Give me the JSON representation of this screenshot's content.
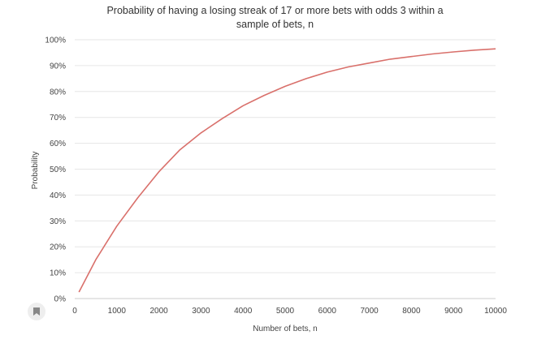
{
  "chart_data": {
    "type": "line",
    "title_lines": [
      "Probability of having a losing streak of 17 or more bets with odds 3 within a",
      "sample of bets, n"
    ],
    "xlabel": "Number of bets, n",
    "ylabel": "Probability",
    "xlim": [
      0,
      10000
    ],
    "ylim": [
      0,
      100
    ],
    "x_ticks": [
      0,
      1000,
      2000,
      3000,
      4000,
      5000,
      6000,
      7000,
      8000,
      9000,
      10000
    ],
    "x_tick_labels": [
      "0",
      "1000",
      "2000",
      "3000",
      "4000",
      "5000",
      "6000",
      "7000",
      "8000",
      "9000",
      "10000"
    ],
    "y_ticks": [
      0,
      10,
      20,
      30,
      40,
      50,
      60,
      70,
      80,
      90,
      100
    ],
    "y_tick_labels": [
      "0%",
      "10%",
      "20%",
      "30%",
      "40%",
      "50%",
      "60%",
      "70%",
      "80%",
      "90%",
      "100%"
    ],
    "grid": "horizontal",
    "series": [
      {
        "color": "#d9706b",
        "x": [
          100,
          500,
          1000,
          1500,
          2000,
          2500,
          3000,
          3500,
          4000,
          4500,
          5000,
          5500,
          6000,
          6500,
          7000,
          7500,
          8000,
          8500,
          9000,
          9500,
          10000
        ],
        "y": [
          2.5,
          15,
          28,
          39,
          49,
          57.5,
          64,
          69.5,
          74.5,
          78.5,
          82,
          85,
          87.5,
          89.5,
          91,
          92.5,
          93.5,
          94.5,
          95.3,
          96,
          96.5
        ]
      }
    ]
  },
  "ui": {
    "bookmark_icon": "bookmark-icon"
  }
}
